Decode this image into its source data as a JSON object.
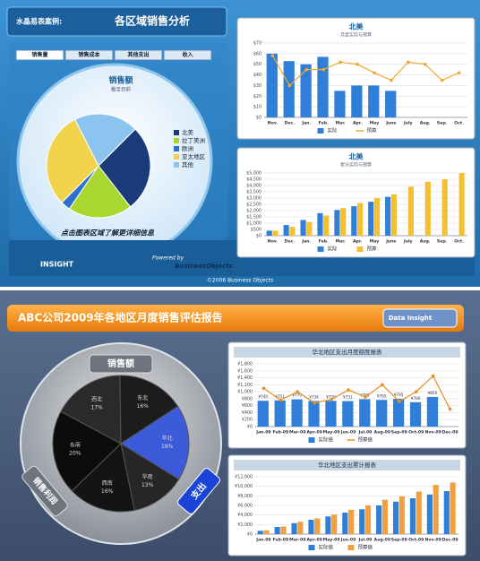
{
  "top": {
    "header": {
      "case_label": "水晶易表案例:",
      "title": "各区域销售分析"
    },
    "tabs": [
      "销售量",
      "销售成本",
      "其他支出",
      "收入"
    ],
    "footer": {
      "hint": "点击图表区域了解更详细信息",
      "logo": "INSIGHT",
      "powered": "Powered by",
      "brand": "BusinessObjects",
      "copyright": "©2006 Business Objects"
    }
  },
  "bottom": {
    "title": "ABC公司2009年各地区月度销售评估报告",
    "button": "Data Insight",
    "pie_buttons": [
      "销售额",
      "支出",
      "销售利润"
    ]
  },
  "chart_data": [
    {
      "type": "pie",
      "title": "销售额",
      "subtitle": "截至目前",
      "categories": [
        "北美",
        "拉丁美洲",
        "欧洲",
        "亚太地区",
        "其他"
      ],
      "values": [
        27,
        20,
        3,
        30,
        20
      ],
      "colors": [
        "#1a3a7a",
        "#a8d830",
        "#2f6fd0",
        "#f2d24a",
        "#8cc4f0"
      ]
    },
    {
      "type": "bar",
      "title": "北美",
      "subtitle": "月度实际与预算",
      "categories": [
        "Nov.",
        "Dec.",
        "Jan.",
        "Feb.",
        "Mar.",
        "Apr.",
        "May",
        "June",
        "July",
        "Aug.",
        "Sep.",
        "Oct."
      ],
      "series": [
        {
          "name": "实际",
          "style": "bar",
          "color": "#2f7fd8",
          "values": [
            60,
            53,
            50,
            57,
            25,
            30,
            30,
            25,
            null,
            null,
            null,
            null
          ]
        },
        {
          "name": "预算",
          "style": "line",
          "color": "#f0a830",
          "values": [
            58,
            30,
            45,
            45,
            52,
            50,
            42,
            35,
            52,
            50,
            35,
            42
          ]
        }
      ],
      "ylim": [
        0,
        70
      ],
      "yticks": [
        {
          "value": 0,
          "label": "$0"
        },
        {
          "value": 10,
          "label": "$10"
        },
        {
          "value": 20,
          "label": "$20"
        },
        {
          "value": 30,
          "label": "$30"
        },
        {
          "value": 40,
          "label": "$40"
        },
        {
          "value": 50,
          "label": "$50"
        },
        {
          "value": 60,
          "label": "$60"
        },
        {
          "value": 70,
          "label": "$70"
        }
      ],
      "grid": true
    },
    {
      "type": "bar",
      "title": "北美",
      "subtitle": "累计实际与预算",
      "categories": [
        "Nov.",
        "Dec.",
        "Jan.",
        "Feb.",
        "Mar.",
        "Apr.",
        "May",
        "June",
        "July",
        "Aug.",
        "Sep.",
        "Oct."
      ],
      "series": [
        {
          "name": "实际",
          "style": "bar",
          "color": "#2f7fd8",
          "values": [
            400,
            850,
            1250,
            1800,
            2050,
            2350,
            2700,
            3100,
            null,
            null,
            null,
            null
          ]
        },
        {
          "name": "预算",
          "style": "bar",
          "color": "#f2c030",
          "values": [
            400,
            700,
            1100,
            1600,
            2200,
            2600,
            3000,
            3300,
            3900,
            4300,
            4500,
            5000
          ]
        }
      ],
      "ylim": [
        0,
        5000
      ],
      "yticks": [
        {
          "value": 0,
          "label": "$0"
        },
        {
          "value": 500,
          "label": "$500"
        },
        {
          "value": 1000,
          "label": "$1,000"
        },
        {
          "value": 1500,
          "label": "$1,500"
        },
        {
          "value": 2000,
          "label": "$2,000"
        },
        {
          "value": 2500,
          "label": "$2,500"
        },
        {
          "value": 3000,
          "label": "$3,000"
        },
        {
          "value": 3500,
          "label": "$3,500"
        },
        {
          "value": 4000,
          "label": "$4,000"
        },
        {
          "value": 4500,
          "label": "$4,500"
        },
        {
          "value": 5000,
          "label": "$5,000"
        }
      ],
      "grid": true
    },
    {
      "type": "pie",
      "categories": [
        "西北",
        "东北",
        "华北",
        "华南",
        "西南",
        "东南"
      ],
      "values": [
        17,
        16,
        18,
        13,
        16,
        20
      ],
      "value_labels": [
        "17%",
        "16%",
        "18%",
        "13%",
        "16%",
        "20%"
      ],
      "colors": [
        "#2a2a2a",
        "#1c1c1c",
        "#3b5bdb",
        "#262626",
        "#141414",
        "#0c0c0c"
      ]
    },
    {
      "type": "bar",
      "title": "华北地区支出月度额度报表",
      "categories": [
        "Jan-09",
        "Feb-09",
        "Mar-09",
        "Apr-09",
        "May-09",
        "Jun-09",
        "Jul-09",
        "Aug-09",
        "Sep-09",
        "Oct-09",
        "Nov-09",
        "Dec-09"
      ],
      "series": [
        {
          "name": "实际值",
          "style": "bar",
          "color": "#2f7fd8",
          "values": [
            740,
            751,
            779,
            734,
            739,
            731,
            785,
            765,
            795,
            700,
            850,
            null
          ],
          "value_labels": [
            "¥740",
            "¥751",
            "¥779",
            "¥734",
            "¥739",
            "¥731",
            "¥785",
            "¥765",
            "¥795",
            "¥700",
            "¥850",
            null
          ]
        },
        {
          "name": "预算值",
          "style": "line",
          "color": "#e89020",
          "values": [
            1100,
            760,
            1000,
            680,
            780,
            1050,
            850,
            1200,
            720,
            1000,
            1450,
            500
          ]
        }
      ],
      "ylim": [
        0,
        1800
      ],
      "yticks": [
        {
          "value": 0,
          "label": "¥0"
        },
        {
          "value": 200,
          "label": "¥200"
        },
        {
          "value": 400,
          "label": "¥400"
        },
        {
          "value": 600,
          "label": "¥600"
        },
        {
          "value": 800,
          "label": "¥800"
        },
        {
          "value": 1000,
          "label": "¥1,000"
        },
        {
          "value": 1200,
          "label": "¥1,200"
        },
        {
          "value": 1400,
          "label": "¥1,400"
        },
        {
          "value": 1600,
          "label": "¥1,600"
        },
        {
          "value": 1800,
          "label": "¥1,800"
        }
      ],
      "grid": true
    },
    {
      "type": "bar",
      "title": "华北地区支出累计报表",
      "categories": [
        "Jan-09",
        "Feb-09",
        "Mar-09",
        "Apr-09",
        "May-09",
        "Jun-09",
        "Jul-09",
        "Aug-09",
        "Sep-09",
        "Oct-09",
        "Nov-09",
        "Dec-09"
      ],
      "series": [
        {
          "name": "实际值",
          "style": "bar",
          "color": "#2f7fd8",
          "values": [
            700,
            1500,
            2300,
            3000,
            3700,
            4500,
            5200,
            6000,
            6800,
            7500,
            8300,
            9000
          ]
        },
        {
          "name": "预算值",
          "style": "bar",
          "color": "#f0a040",
          "values": [
            800,
            1600,
            2600,
            3300,
            4100,
            5100,
            6000,
            7200,
            7900,
            8900,
            10300,
            10800
          ]
        }
      ],
      "ylim": [
        0,
        12000
      ],
      "yticks": [
        {
          "value": 0,
          "label": "¥0"
        },
        {
          "value": 2000,
          "label": "¥2,000"
        },
        {
          "value": 4000,
          "label": "¥4,000"
        },
        {
          "value": 6000,
          "label": "¥6,000"
        },
        {
          "value": 8000,
          "label": "¥8,000"
        },
        {
          "value": 10000,
          "label": "¥10,000"
        },
        {
          "value": 12000,
          "label": "¥12,000"
        }
      ],
      "grid": true
    }
  ]
}
